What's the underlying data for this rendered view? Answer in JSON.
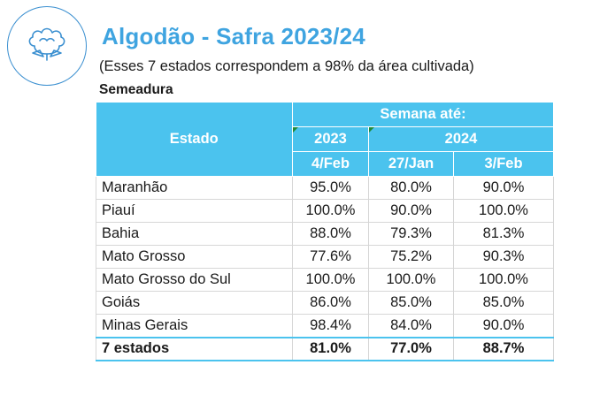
{
  "header": {
    "title": "Algodão - Safra 2023/24",
    "subtitle": "(Esses 7 estados correspondem a 98% da área cultivada)",
    "section": "Semeadura",
    "logo_icon": "cotton-flower-icon",
    "accent_color": "#4bc3ee"
  },
  "table": {
    "col_estado": "Estado",
    "group_label": "Semana até:",
    "year_a": "2023",
    "year_b": "2024",
    "dates": [
      "4/Feb",
      "27/Jan",
      "3/Feb"
    ],
    "rows": [
      {
        "name": "Maranhão",
        "values": [
          "95.0%",
          "80.0%",
          "90.0%"
        ]
      },
      {
        "name": "Piauí",
        "values": [
          "100.0%",
          "90.0%",
          "100.0%"
        ]
      },
      {
        "name": "Bahia",
        "values": [
          "88.0%",
          "79.3%",
          "81.3%"
        ]
      },
      {
        "name": "Mato Grosso",
        "values": [
          "77.6%",
          "75.2%",
          "90.3%"
        ]
      },
      {
        "name": "Mato Grosso do Sul",
        "values": [
          "100.0%",
          "100.0%",
          "100.0%"
        ]
      },
      {
        "name": "Goiás",
        "values": [
          "86.0%",
          "85.0%",
          "85.0%"
        ]
      },
      {
        "name": "Minas Gerais",
        "values": [
          "98.4%",
          "84.0%",
          "90.0%"
        ]
      }
    ],
    "total": {
      "name": "7 estados",
      "values": [
        "81.0%",
        "77.0%",
        "88.7%"
      ]
    }
  }
}
